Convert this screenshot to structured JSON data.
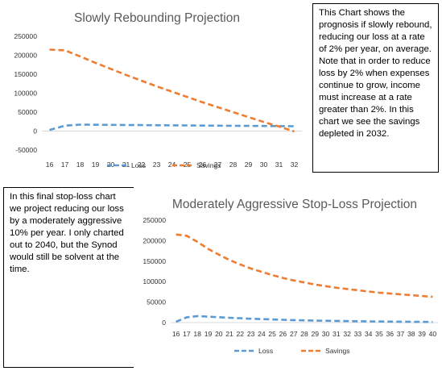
{
  "top_note": "This Chart shows the prognosis if slowly rebound, reducing our loss at a rate of 2% per year, on average. Note that in order to reduce loss by 2% when expenses continue to grow, income must increase at a rate greater than 2%. In this chart we see the savings depleted in 2032.",
  "bottom_note": "In this final stop-loss chart we project reducing our loss by a moderately aggressive 10% per year. I only charted out to 2040, but the Synod would still be solvent at the time.",
  "colors": {
    "loss": "#5b9bd5",
    "savings": "#ed7d31",
    "grid": "#d9d9d9"
  },
  "chart_data": [
    {
      "type": "line",
      "title": "Slowly Rebounding Projection",
      "categories": [
        "16",
        "17",
        "18",
        "19",
        "20",
        "21",
        "22",
        "23",
        "24",
        "25",
        "26",
        "27",
        "28",
        "29",
        "30",
        "31",
        "32"
      ],
      "yticks": [
        "250000",
        "200000",
        "150000",
        "100000",
        "50000",
        "0",
        "-50000"
      ],
      "ylim": [
        -50000,
        250000
      ],
      "series": [
        {
          "name": "Loss",
          "style": "dashed",
          "values": [
            3000,
            14000,
            17000,
            16700,
            16400,
            16000,
            15700,
            15400,
            15100,
            14800,
            14500,
            14200,
            13900,
            13600,
            13300,
            13000,
            12800
          ]
        },
        {
          "name": "Savings",
          "style": "dashed",
          "values": [
            215000,
            213000,
            197000,
            180000,
            164000,
            148000,
            133000,
            118000,
            104000,
            90000,
            76000,
            63000,
            50000,
            37000,
            24000,
            12000,
            -1000
          ]
        }
      ],
      "legend": "bottom"
    },
    {
      "type": "line",
      "title": "Moderately Aggressive Stop-Loss Projection",
      "categories": [
        "16",
        "17",
        "18",
        "19",
        "20",
        "21",
        "22",
        "23",
        "24",
        "25",
        "26",
        "27",
        "28",
        "29",
        "30",
        "31",
        "32",
        "33",
        "34",
        "35",
        "36",
        "37",
        "38",
        "39",
        "40"
      ],
      "yticks": [
        "250000",
        "200000",
        "150000",
        "100000",
        "50000",
        "0"
      ],
      "ylim": [
        0,
        250000
      ],
      "series": [
        {
          "name": "Loss",
          "style": "dashed",
          "values": [
            2000,
            13000,
            16000,
            14500,
            13100,
            11800,
            10600,
            9500,
            8600,
            7700,
            6900,
            6200,
            5600,
            5000,
            4500,
            4100,
            3700,
            3300,
            3000,
            2700,
            2400,
            2200,
            2000,
            1800,
            1600
          ]
        },
        {
          "name": "Savings",
          "style": "dashed",
          "values": [
            215000,
            212000,
            197000,
            180000,
            166000,
            153000,
            142000,
            132000,
            124000,
            116000,
            109000,
            103000,
            98000,
            93000,
            89000,
            85000,
            82000,
            79000,
            76000,
            73000,
            71000,
            69000,
            67000,
            65000,
            63000
          ]
        }
      ],
      "legend": "bottom"
    }
  ]
}
